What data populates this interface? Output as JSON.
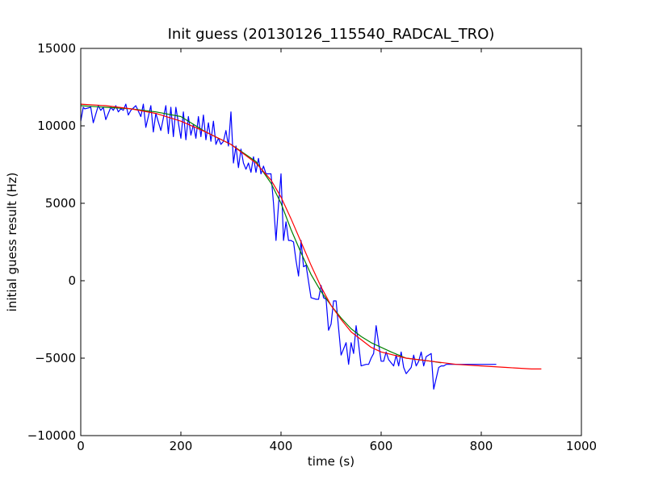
{
  "chart_data": {
    "type": "line",
    "title": "Init guess (20130126_115540_RADCAL_TRO)",
    "xlabel": "time (s)",
    "ylabel": "initial guess result (Hz)",
    "xlim": [
      0,
      1000
    ],
    "ylim": [
      -10000,
      15000
    ],
    "xticks": [
      0,
      200,
      400,
      600,
      800,
      1000
    ],
    "yticks": [
      -10000,
      -5000,
      0,
      5000,
      10000,
      15000
    ],
    "xtick_labels": [
      "0",
      "200",
      "400",
      "600",
      "800",
      "1000"
    ],
    "ytick_labels": [
      "−10000",
      "−5000",
      "0",
      "5000",
      "10000",
      "15000"
    ],
    "grid": false,
    "legend": "none",
    "series": [
      {
        "color": "#0000ff",
        "x": [
          0,
          5,
          8,
          20,
          25,
          35,
          40,
          45,
          50,
          60,
          65,
          70,
          75,
          80,
          85,
          90,
          95,
          100,
          110,
          120,
          125,
          130,
          140,
          145,
          150,
          160,
          170,
          175,
          180,
          185,
          190,
          200,
          205,
          210,
          215,
          220,
          225,
          230,
          235,
          240,
          245,
          250,
          255,
          260,
          265,
          270,
          275,
          280,
          285,
          290,
          295,
          300,
          305,
          310,
          315,
          320,
          325,
          330,
          335,
          340,
          345,
          350,
          355,
          360,
          365,
          370,
          380,
          385,
          390,
          395,
          400,
          405,
          410,
          415,
          420,
          425,
          430,
          435,
          440,
          445,
          450,
          460,
          470,
          475,
          480,
          485,
          490,
          495,
          500,
          505,
          510,
          520,
          525,
          530,
          535,
          540,
          545,
          550,
          555,
          560,
          570,
          575,
          580,
          585,
          590,
          600,
          605,
          610,
          615,
          620,
          625,
          630,
          635,
          640,
          645,
          650,
          660,
          665,
          670,
          675,
          680,
          685,
          690,
          700,
          705,
          710,
          715,
          720,
          725,
          730,
          735,
          740,
          745,
          750,
          760,
          770,
          775,
          780,
          790,
          800,
          810,
          820,
          830
        ],
        "y": [
          10300,
          11200,
          11100,
          11200,
          10200,
          11300,
          11000,
          11200,
          10400,
          11200,
          11000,
          11300,
          10900,
          11100,
          11000,
          11400,
          10700,
          11000,
          11300,
          10600,
          11400,
          9900,
          11300,
          9600,
          10800,
          9700,
          11300,
          9500,
          11200,
          9300,
          11200,
          9200,
          10900,
          9100,
          10600,
          9400,
          10100,
          9200,
          10600,
          9300,
          10700,
          9100,
          10200,
          9000,
          10300,
          8800,
          9200,
          8800,
          9000,
          9700,
          8700,
          10900,
          7600,
          8700,
          7300,
          8500,
          7600,
          7200,
          7600,
          7000,
          8000,
          7000,
          7900,
          6900,
          7400,
          6900,
          6900,
          5000,
          2600,
          4900,
          6900,
          2600,
          3800,
          2600,
          2600,
          2500,
          1300,
          300,
          2600,
          900,
          1000,
          -1100,
          -1200,
          -1200,
          -300,
          -1100,
          -1200,
          -3200,
          -2800,
          -1300,
          -1300,
          -4800,
          -4400,
          -4000,
          -5400,
          -4000,
          -4700,
          -2900,
          -4100,
          -5500,
          -5400,
          -5400,
          -5000,
          -4700,
          -2900,
          -5200,
          -5200,
          -4600,
          -5100,
          -5300,
          -5500,
          -4800,
          -5500,
          -4600,
          -5600,
          -6000,
          -5600,
          -4800,
          -5500,
          -5200,
          -4600,
          -5500,
          -4900,
          -4700,
          -7000,
          -6300,
          -5600,
          -5500,
          -5500,
          -5400,
          -5400,
          -5400,
          -5400,
          -5400,
          -5400,
          -5400,
          -5400,
          -5400,
          -5400,
          -5400,
          -5400,
          -5400,
          -5400
        ],
        "note_len": "x/y pairs"
      },
      {
        "color": "#008000",
        "x": [
          0,
          50,
          100,
          150,
          200,
          250,
          300,
          350,
          380,
          400,
          420,
          440,
          460,
          480,
          500,
          520,
          540,
          560,
          580,
          600,
          620,
          650,
          700,
          720
        ],
        "y": [
          11300,
          11200,
          11100,
          10900,
          10600,
          9600,
          8800,
          7700,
          6300,
          5000,
          3300,
          1800,
          400,
          -700,
          -1600,
          -2400,
          -3100,
          -3600,
          -4000,
          -4300,
          -4600,
          -5000,
          -5200,
          -5300
        ]
      },
      {
        "color": "#ff0000",
        "x": [
          0,
          50,
          100,
          150,
          200,
          250,
          300,
          350,
          380,
          400,
          420,
          440,
          460,
          480,
          500,
          520,
          540,
          560,
          580,
          600,
          650,
          700,
          750,
          800,
          850,
          900,
          920
        ],
        "y": [
          11400,
          11300,
          11100,
          10800,
          10300,
          9600,
          8800,
          7600,
          6500,
          5400,
          4000,
          2500,
          1000,
          -400,
          -1600,
          -2500,
          -3300,
          -3800,
          -4300,
          -4600,
          -5000,
          -5200,
          -5400,
          -5500,
          -5600,
          -5700,
          -5700
        ]
      }
    ]
  }
}
